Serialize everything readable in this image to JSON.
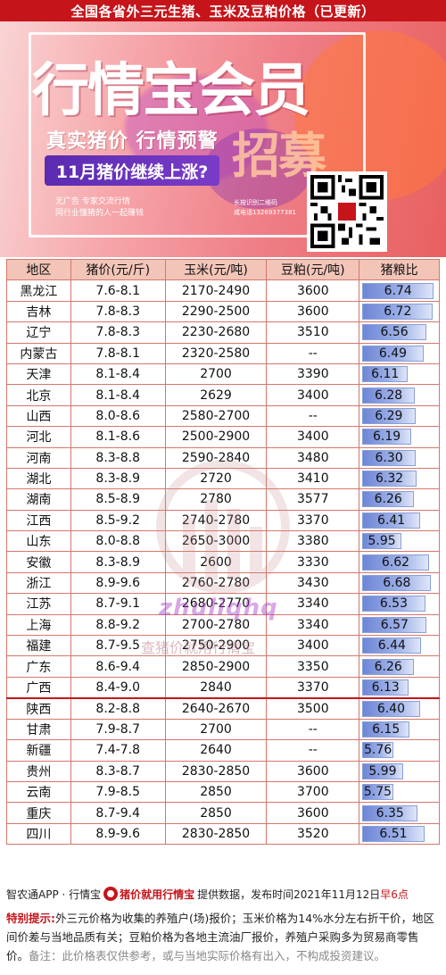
{
  "title": "全国各省外三元生猪、玉米及豆粕价格（已更新）",
  "banner": {
    "headline": "行情宝会员",
    "slogan": "真实猪价 行情预警",
    "recruit": "招募",
    "pill": "11月猪价继续上涨?",
    "note1_line1": "无广告 专家交流行情",
    "note1_line2": "同行业懂猪的人一起赚钱",
    "note2_line1": "长按识别二维码",
    "note2_line2": "咸电话13269377381"
  },
  "table": {
    "headers": [
      "地区",
      "猪价(元/斤)",
      "玉米(元/吨)",
      "豆粕(元/吨)",
      "猪粮比"
    ],
    "rows": [
      {
        "region": "黑龙江",
        "pig": "7.6-8.1",
        "corn": "2170-2490",
        "soy": "3600",
        "ratio": "6.74",
        "r": 6.74
      },
      {
        "region": "吉林",
        "pig": "7.8-8.3",
        "corn": "2290-2500",
        "soy": "3600",
        "ratio": "6.72",
        "r": 6.72
      },
      {
        "region": "辽宁",
        "pig": "7.8-8.3",
        "corn": "2230-2680",
        "soy": "3510",
        "ratio": "6.56",
        "r": 6.56
      },
      {
        "region": "内蒙古",
        "pig": "7.8-8.1",
        "corn": "2320-2580",
        "soy": "--",
        "ratio": "6.49",
        "r": 6.49
      },
      {
        "region": "天津",
        "pig": "8.1-8.4",
        "corn": "2700",
        "soy": "3390",
        "ratio": "6.11",
        "r": 6.11
      },
      {
        "region": "北京",
        "pig": "8.1-8.4",
        "corn": "2629",
        "soy": "3400",
        "ratio": "6.28",
        "r": 6.28
      },
      {
        "region": "山西",
        "pig": "8.0-8.6",
        "corn": "2580-2700",
        "soy": "--",
        "ratio": "6.29",
        "r": 6.29
      },
      {
        "region": "河北",
        "pig": "8.1-8.6",
        "corn": "2500-2900",
        "soy": "3400",
        "ratio": "6.19",
        "r": 6.19
      },
      {
        "region": "河南",
        "pig": "8.3-8.8",
        "corn": "2590-2840",
        "soy": "3480",
        "ratio": "6.30",
        "r": 6.3
      },
      {
        "region": "湖北",
        "pig": "8.3-8.9",
        "corn": "2720",
        "soy": "3410",
        "ratio": "6.32",
        "r": 6.32
      },
      {
        "region": "湖南",
        "pig": "8.5-8.9",
        "corn": "2780",
        "soy": "3577",
        "ratio": "6.26",
        "r": 6.26
      },
      {
        "region": "江西",
        "pig": "8.5-9.2",
        "corn": "2740-2780",
        "soy": "3370",
        "ratio": "6.41",
        "r": 6.41
      },
      {
        "region": "山东",
        "pig": "8.0-8.8",
        "corn": "2650-3000",
        "soy": "3380",
        "ratio": "5.95",
        "r": 5.95
      },
      {
        "region": "安徽",
        "pig": "8.3-8.9",
        "corn": "2600",
        "soy": "3330",
        "ratio": "6.62",
        "r": 6.62
      },
      {
        "region": "浙江",
        "pig": "8.9-9.6",
        "corn": "2760-2780",
        "soy": "3430",
        "ratio": "6.68",
        "r": 6.68
      },
      {
        "region": "江苏",
        "pig": "8.7-9.1",
        "corn": "2680-2770",
        "soy": "3340",
        "ratio": "6.53",
        "r": 6.53
      },
      {
        "region": "上海",
        "pig": "8.8-9.2",
        "corn": "2700-2780",
        "soy": "3340",
        "ratio": "6.57",
        "r": 6.57
      },
      {
        "region": "福建",
        "pig": "8.7-9.5",
        "corn": "2750-2900",
        "soy": "3400",
        "ratio": "6.44",
        "r": 6.44
      },
      {
        "region": "广东",
        "pig": "8.6-9.4",
        "corn": "2850-2900",
        "soy": "3350",
        "ratio": "6.26",
        "r": 6.26
      },
      {
        "region": "广西",
        "pig": "8.4-9.0",
        "corn": "2840",
        "soy": "3370",
        "ratio": "6.13",
        "r": 6.13
      },
      {
        "region": "陕西",
        "pig": "8.2-8.8",
        "corn": "2640-2670",
        "soy": "3500",
        "ratio": "6.40",
        "r": 6.4
      },
      {
        "region": "甘肃",
        "pig": "7.9-8.7",
        "corn": "2700",
        "soy": "--",
        "ratio": "6.15",
        "r": 6.15
      },
      {
        "region": "新疆",
        "pig": "7.4-7.8",
        "corn": "2640",
        "soy": "--",
        "ratio": "5.76",
        "r": 5.76
      },
      {
        "region": "贵州",
        "pig": "8.3-8.7",
        "corn": "2830-2850",
        "soy": "3600",
        "ratio": "5.99",
        "r": 5.99
      },
      {
        "region": "云南",
        "pig": "7.9-8.5",
        "corn": "2850",
        "soy": "3700",
        "ratio": "5.75",
        "r": 5.75
      },
      {
        "region": "重庆",
        "pig": "8.7-9.4",
        "corn": "2850",
        "soy": "3600",
        "ratio": "6.35",
        "r": 6.35
      },
      {
        "region": "四川",
        "pig": "8.9-9.6",
        "corn": "2830-2850",
        "soy": "3520",
        "ratio": "6.51",
        "r": 6.51
      }
    ]
  },
  "watermark": {
    "text": "zhuliqhq",
    "sub": "查猪价就用行情宝"
  },
  "footer": {
    "source": "智农通APP · 行情宝",
    "badge": "猪价就用行情宝",
    "provide": "提供数据，发布时间2021年11月12日",
    "time": "早6点"
  },
  "tips": {
    "label": "特别提示:",
    "text": "外三元价格为收集的养殖户(场)报价；玉米价格为14%水分左右折干价，地区间价差与当地品质有关；豆粕价格为各地主流油厂报价，养殖户采购多为贸易商零售价。",
    "disclaimer": "备注：此价格表仅供参考，或与当地实际价格有出入，不构成投资建议。"
  },
  "colors": {
    "accent": "#c5151b",
    "header_bg": "#f3c5b8",
    "bar": "#6e86d6"
  }
}
